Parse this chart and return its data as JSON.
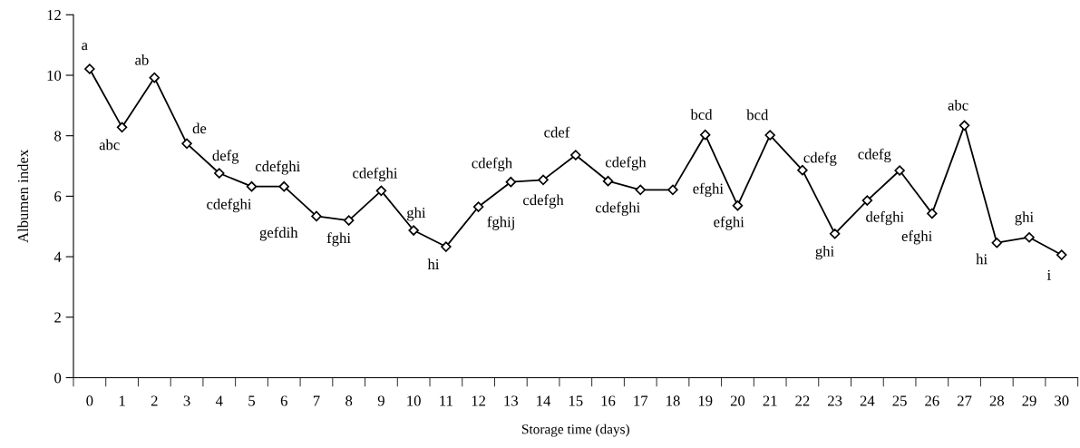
{
  "chart_data": {
    "type": "line",
    "xlabel": "Storage time (days)",
    "ylabel": "Albumen index",
    "categories": [
      "0",
      "1",
      "2",
      "3",
      "4",
      "5",
      "6",
      "7",
      "8",
      "9",
      "10",
      "11",
      "12",
      "13",
      "14",
      "15",
      "16",
      "17",
      "18",
      "19",
      "20",
      "21",
      "22",
      "23",
      "24",
      "25",
      "26",
      "27",
      "28",
      "29",
      "30"
    ],
    "series": [
      {
        "color": "#000000",
        "values": [
          10.21,
          8.28,
          9.92,
          7.74,
          6.76,
          6.32,
          6.32,
          5.34,
          5.2,
          6.18,
          4.87,
          4.33,
          5.65,
          6.47,
          6.54,
          7.36,
          6.5,
          6.21,
          6.21,
          8.03,
          5.69,
          8.02,
          6.86,
          4.76,
          5.86,
          6.85,
          5.43,
          8.34,
          4.46,
          4.64,
          4.06
        ]
      }
    ],
    "ylim": [
      0,
      12
    ],
    "yticks": [
      0,
      2,
      4,
      6,
      8,
      10,
      12
    ],
    "marker": "diamond",
    "line_style": "solid",
    "grid": false,
    "legend": false,
    "annotations": [
      {
        "text": "a",
        "x": "0",
        "y": 10.21
      },
      {
        "text": "abc",
        "x": "1",
        "y": 8.28
      },
      {
        "text": "ab",
        "x": "2",
        "y": 9.92
      },
      {
        "text": "de",
        "x": "3",
        "y": 7.74
      },
      {
        "text": "defg",
        "x": "4",
        "y": 6.76
      },
      {
        "text": "cdefghi",
        "x": "5",
        "y": 6.32
      },
      {
        "text": "cdefghi",
        "x": "6",
        "y": 6.32
      },
      {
        "text": "gefdih",
        "x": "7",
        "y": 5.34
      },
      {
        "text": "fghi",
        "x": "8",
        "y": 5.2
      },
      {
        "text": "cdefghi",
        "x": "9",
        "y": 6.18
      },
      {
        "text": "ghi",
        "x": "10",
        "y": 4.87
      },
      {
        "text": "hi",
        "x": "11",
        "y": 4.33
      },
      {
        "text": "fghij",
        "x": "12",
        "y": 5.65
      },
      {
        "text": "cdefgh",
        "x": "13",
        "y": 6.47
      },
      {
        "text": "cdefgh",
        "x": "14",
        "y": 6.54
      },
      {
        "text": "cdef",
        "x": "15",
        "y": 7.36
      },
      {
        "text": "cdefgh",
        "x": "16",
        "y": 6.5
      },
      {
        "text": "cdefghi",
        "x": "17",
        "y": 6.21
      },
      {
        "text": "efghi",
        "x": "18",
        "y": 6.21
      },
      {
        "text": "bcd",
        "x": "19",
        "y": 8.03
      },
      {
        "text": "efghi",
        "x": "20",
        "y": 5.69
      },
      {
        "text": "bcd",
        "x": "21",
        "y": 8.02
      },
      {
        "text": "cdefg",
        "x": "22",
        "y": 6.86
      },
      {
        "text": "ghi",
        "x": "23",
        "y": 4.76
      },
      {
        "text": "defghi",
        "x": "24",
        "y": 5.86
      },
      {
        "text": "cdefg",
        "x": "25",
        "y": 6.85
      },
      {
        "text": "efghi",
        "x": "26",
        "y": 5.43
      },
      {
        "text": "abc",
        "x": "27",
        "y": 8.34
      },
      {
        "text": "hi",
        "x": "28",
        "y": 4.46
      },
      {
        "text": "ghi",
        "x": "29",
        "y": 4.64
      },
      {
        "text": "i",
        "x": "30",
        "y": 4.06
      }
    ]
  }
}
